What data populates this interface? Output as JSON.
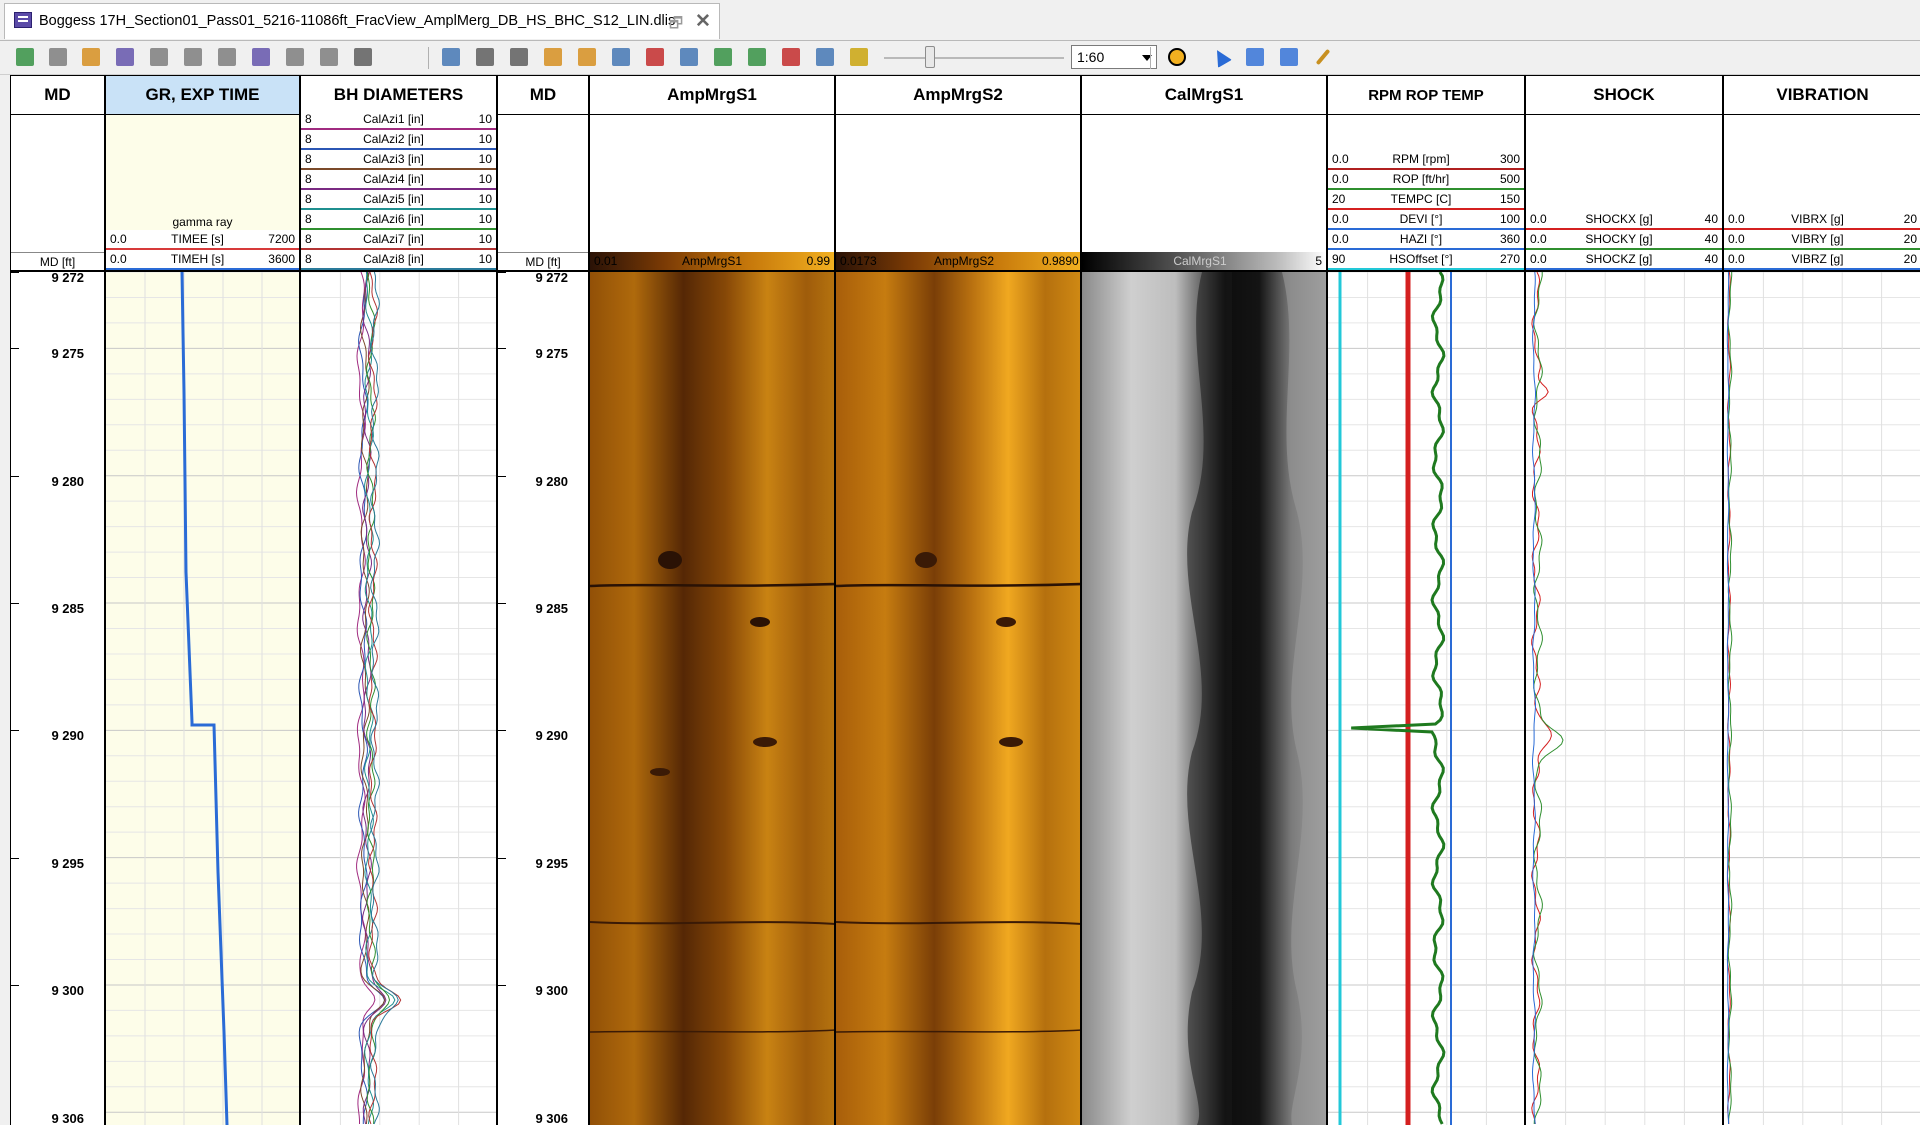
{
  "window": {
    "tab_title": "Boggess 17H_Section01_Pass01_5216-11086ft_FracView_AmplMerg_DB_HS_BHC_S12_LIN.dlis",
    "restore_icon": "restore-icon",
    "close_glyph": "✕"
  },
  "toolbar": {
    "scale_value": "1:60",
    "icons": [
      "refresh-icon",
      "save-icon",
      "save-as-icon",
      "dlis-icon",
      "doc-a-icon",
      "doc-b-icon",
      "doc-c-icon",
      "export-icon",
      "doc-d-icon",
      "doc-e-icon",
      "tower-icon",
      "fit-icon",
      "camera-icon",
      "print-icon",
      "image-icon",
      "table-icon",
      "html-icon",
      "pdf-icon",
      "undo-icon",
      "add-track-icon",
      "add-curve-icon",
      "remove-icon",
      "properties-icon",
      "lock-icon",
      "crosshair-icon",
      "pointer-icon",
      "vertical-resize-icon",
      "horizontal-resize-icon",
      "pencil-icon"
    ]
  },
  "tracks": {
    "md_left": {
      "title": "MD",
      "unit_label": "MD [ft]"
    },
    "gr": {
      "title": "GR, EXP TIME",
      "gamma_label": "gamma ray",
      "curves": [
        {
          "lo": "0.0",
          "name": "TIMEE [s]",
          "hi": "7200",
          "color": "#d73a3a"
        },
        {
          "lo": "0.0",
          "name": "TIMEH [s]",
          "hi": "3600",
          "color": "#2a6bd6"
        }
      ]
    },
    "bh": {
      "title": "BH DIAMETERS",
      "curves": [
        {
          "lo": "8",
          "name": "CalAzi1 [in]",
          "hi": "10",
          "color": "#a02b80"
        },
        {
          "lo": "8",
          "name": "CalAzi2 [in]",
          "hi": "10",
          "color": "#2b56b4"
        },
        {
          "lo": "8",
          "name": "CalAzi3 [in]",
          "hi": "10",
          "color": "#7b4a2a"
        },
        {
          "lo": "8",
          "name": "CalAzi4 [in]",
          "hi": "10",
          "color": "#7a2a82"
        },
        {
          "lo": "8",
          "name": "CalAzi5 [in]",
          "hi": "10",
          "color": "#1f8f8f"
        },
        {
          "lo": "8",
          "name": "CalAzi6 [in]",
          "hi": "10",
          "color": "#2f8f2f"
        },
        {
          "lo": "8",
          "name": "CalAzi7 [in]",
          "hi": "10",
          "color": "#b23333"
        },
        {
          "lo": "8",
          "name": "CalAzi8 [in]",
          "hi": "10",
          "color": "#2a7a9a"
        }
      ]
    },
    "md_right": {
      "title": "MD",
      "unit_label": "MD [ft]"
    },
    "amp1": {
      "title": "AmpMrgS1",
      "lo": "0.01",
      "name": "AmpMrgS1",
      "hi": "0.99"
    },
    "amp2": {
      "title": "AmpMrgS2",
      "lo": "0.0173",
      "name": "AmpMrgS2",
      "hi": "0.9890"
    },
    "cal": {
      "title": "CalMrgS1",
      "name": "CalMrgS1",
      "hi": "5"
    },
    "rpm": {
      "title": "RPM ROP TEMP",
      "curves": [
        {
          "lo": "0.0",
          "name": "RPM [rpm]",
          "hi": "300",
          "color": "#b02020"
        },
        {
          "lo": "0.0",
          "name": "ROP [ft/hr]",
          "hi": "500",
          "color": "#2f8f2f"
        },
        {
          "lo": "20",
          "name": "TEMPC [C]",
          "hi": "150",
          "color": "#d42020"
        },
        {
          "lo": "0.0",
          "name": "DEVI [°]",
          "hi": "100",
          "color": "#2a6bd6"
        },
        {
          "lo": "0.0",
          "name": "HAZI [°]",
          "hi": "360",
          "color": "#2a6bd6"
        },
        {
          "lo": "90",
          "name": "HSOffset [°]",
          "hi": "270",
          "color": "#22c8d8"
        }
      ]
    },
    "shock": {
      "title": "SHOCK",
      "curves": [
        {
          "lo": "0.0",
          "name": "SHOCKX [g]",
          "hi": "40",
          "color": "#d42020"
        },
        {
          "lo": "0.0",
          "name": "SHOCKY [g]",
          "hi": "40",
          "color": "#2f8f2f"
        },
        {
          "lo": "0.0",
          "name": "SHOCKZ [g]",
          "hi": "40",
          "color": "#2a6bd6"
        }
      ]
    },
    "vib": {
      "title": "VIBRATION",
      "curves": [
        {
          "lo": "0.0",
          "name": "VIBRX [g]",
          "hi": "20",
          "color": "#d42020"
        },
        {
          "lo": "0.0",
          "name": "VIBRY [g]",
          "hi": "20",
          "color": "#2f8f2f"
        },
        {
          "lo": "0.0",
          "name": "VIBRZ [g]",
          "hi": "20",
          "color": "#2a6bd6"
        }
      ]
    }
  },
  "depth_labels": [
    "9 272",
    "9 275",
    "9 280",
    "9 285",
    "9 290",
    "9 295",
    "9 300",
    "9 306"
  ],
  "colors": {
    "gr_bg": "#fdfde9",
    "selected_header": "#c9e2f7"
  }
}
